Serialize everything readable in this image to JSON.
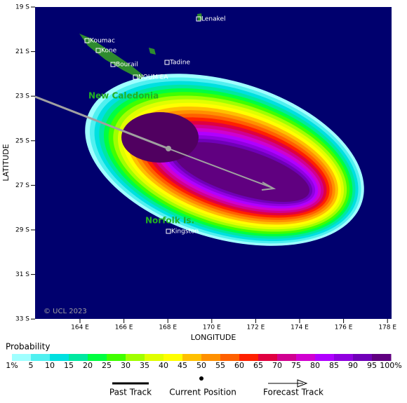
{
  "axes": {
    "latitude_label": "LATITUDE",
    "longitude_label": "LONGITUDE",
    "lat_ticks": [
      "19 S",
      "21 S",
      "23 S",
      "25 S",
      "27 S",
      "29 S",
      "31 S",
      "33 S"
    ],
    "lon_ticks": [
      "164 E",
      "166 E",
      "168 E",
      "170 E",
      "172 E",
      "174 E",
      "176 E",
      "178 E"
    ]
  },
  "places": [
    {
      "label": "Lenakel"
    },
    {
      "label": "Koumac"
    },
    {
      "label": "Kone"
    },
    {
      "label": "Bourail"
    },
    {
      "label": "Tadine"
    },
    {
      "label": "NOUM'EA"
    },
    {
      "label": "Kingston"
    }
  ],
  "regions": [
    {
      "label": "New Caledonia"
    },
    {
      "label": "Norfolk Is."
    }
  ],
  "credit": "© UCL 2023",
  "probability_legend": {
    "title": "Probability",
    "labels": [
      "1%",
      "5",
      "10",
      "15",
      "20",
      "25",
      "30",
      "35",
      "40",
      "45",
      "50",
      "55",
      "60",
      "65",
      "70",
      "75",
      "80",
      "85",
      "90",
      "95",
      "100%"
    ],
    "colors": [
      "#a0ffff",
      "#50f0f0",
      "#00e0e0",
      "#00e8a0",
      "#00ff40",
      "#40ff00",
      "#a0ff00",
      "#e0ff00",
      "#ffff00",
      "#ffc000",
      "#ff9000",
      "#ff6000",
      "#ff2000",
      "#e00040",
      "#d00090",
      "#d000d0",
      "#b000ff",
      "#9000e0",
      "#7000b8",
      "#600080"
    ]
  },
  "track_legend": [
    "Past Track",
    "Current Position",
    "Forecast Track"
  ]
}
